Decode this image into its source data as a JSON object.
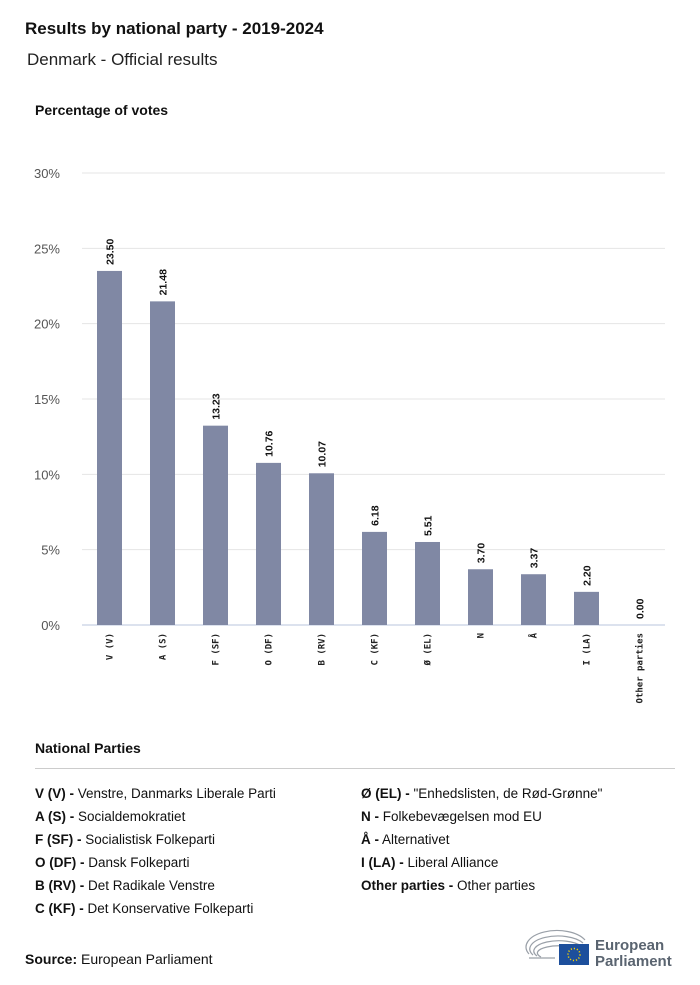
{
  "header": {
    "title": "Results by national party - 2019-2024",
    "subtitle": "Denmark - Official results"
  },
  "chart_data": {
    "type": "bar",
    "ylabel": "Percentage of votes",
    "ylim": [
      0,
      30
    ],
    "yticks": [
      "0%",
      "5%",
      "10%",
      "15%",
      "20%",
      "25%",
      "30%"
    ],
    "grid": true,
    "bar_color": "#8088a4",
    "categories": [
      "V (V)",
      "A (S)",
      "F (SF)",
      "O (DF)",
      "B (RV)",
      "C (KF)",
      "Ø (EL)",
      "N",
      "Å",
      "I (LA)",
      "Other parties"
    ],
    "values": [
      23.5,
      21.48,
      13.23,
      10.76,
      10.07,
      6.18,
      5.51,
      3.7,
      3.37,
      2.2,
      0.0
    ],
    "value_labels": [
      "23.50",
      "21.48",
      "13.23",
      "10.76",
      "10.07",
      "6.18",
      "5.51",
      "3.70",
      "3.37",
      "2.20",
      "0.00"
    ]
  },
  "legend": {
    "title": "National Parties",
    "left": [
      {
        "code": "V (V) -",
        "name": "Venstre, Danmarks Liberale Parti"
      },
      {
        "code": "A (S) -",
        "name": "Socialdemokratiet"
      },
      {
        "code": "F (SF) -",
        "name": "Socialistisk Folkeparti"
      },
      {
        "code": "O (DF) -",
        "name": "Dansk Folkeparti"
      },
      {
        "code": "B (RV) -",
        "name": "Det Radikale Venstre"
      },
      {
        "code": "C (KF) -",
        "name": "Det Konservative Folkeparti"
      }
    ],
    "right": [
      {
        "code": "Ø (EL) -",
        "name": "\"Enhedslisten, de Rød-Grønne\""
      },
      {
        "code": "N -",
        "name": "Folkebevægelsen mod EU"
      },
      {
        "code": "Å -",
        "name": "Alternativet"
      },
      {
        "code": "I (LA) -",
        "name": "Liberal Alliance"
      },
      {
        "code": "Other parties -",
        "name": "Other parties"
      }
    ]
  },
  "footer": {
    "source_label": "Source:",
    "source": "European Parliament",
    "logo_text": [
      "European",
      "Parliament"
    ]
  }
}
